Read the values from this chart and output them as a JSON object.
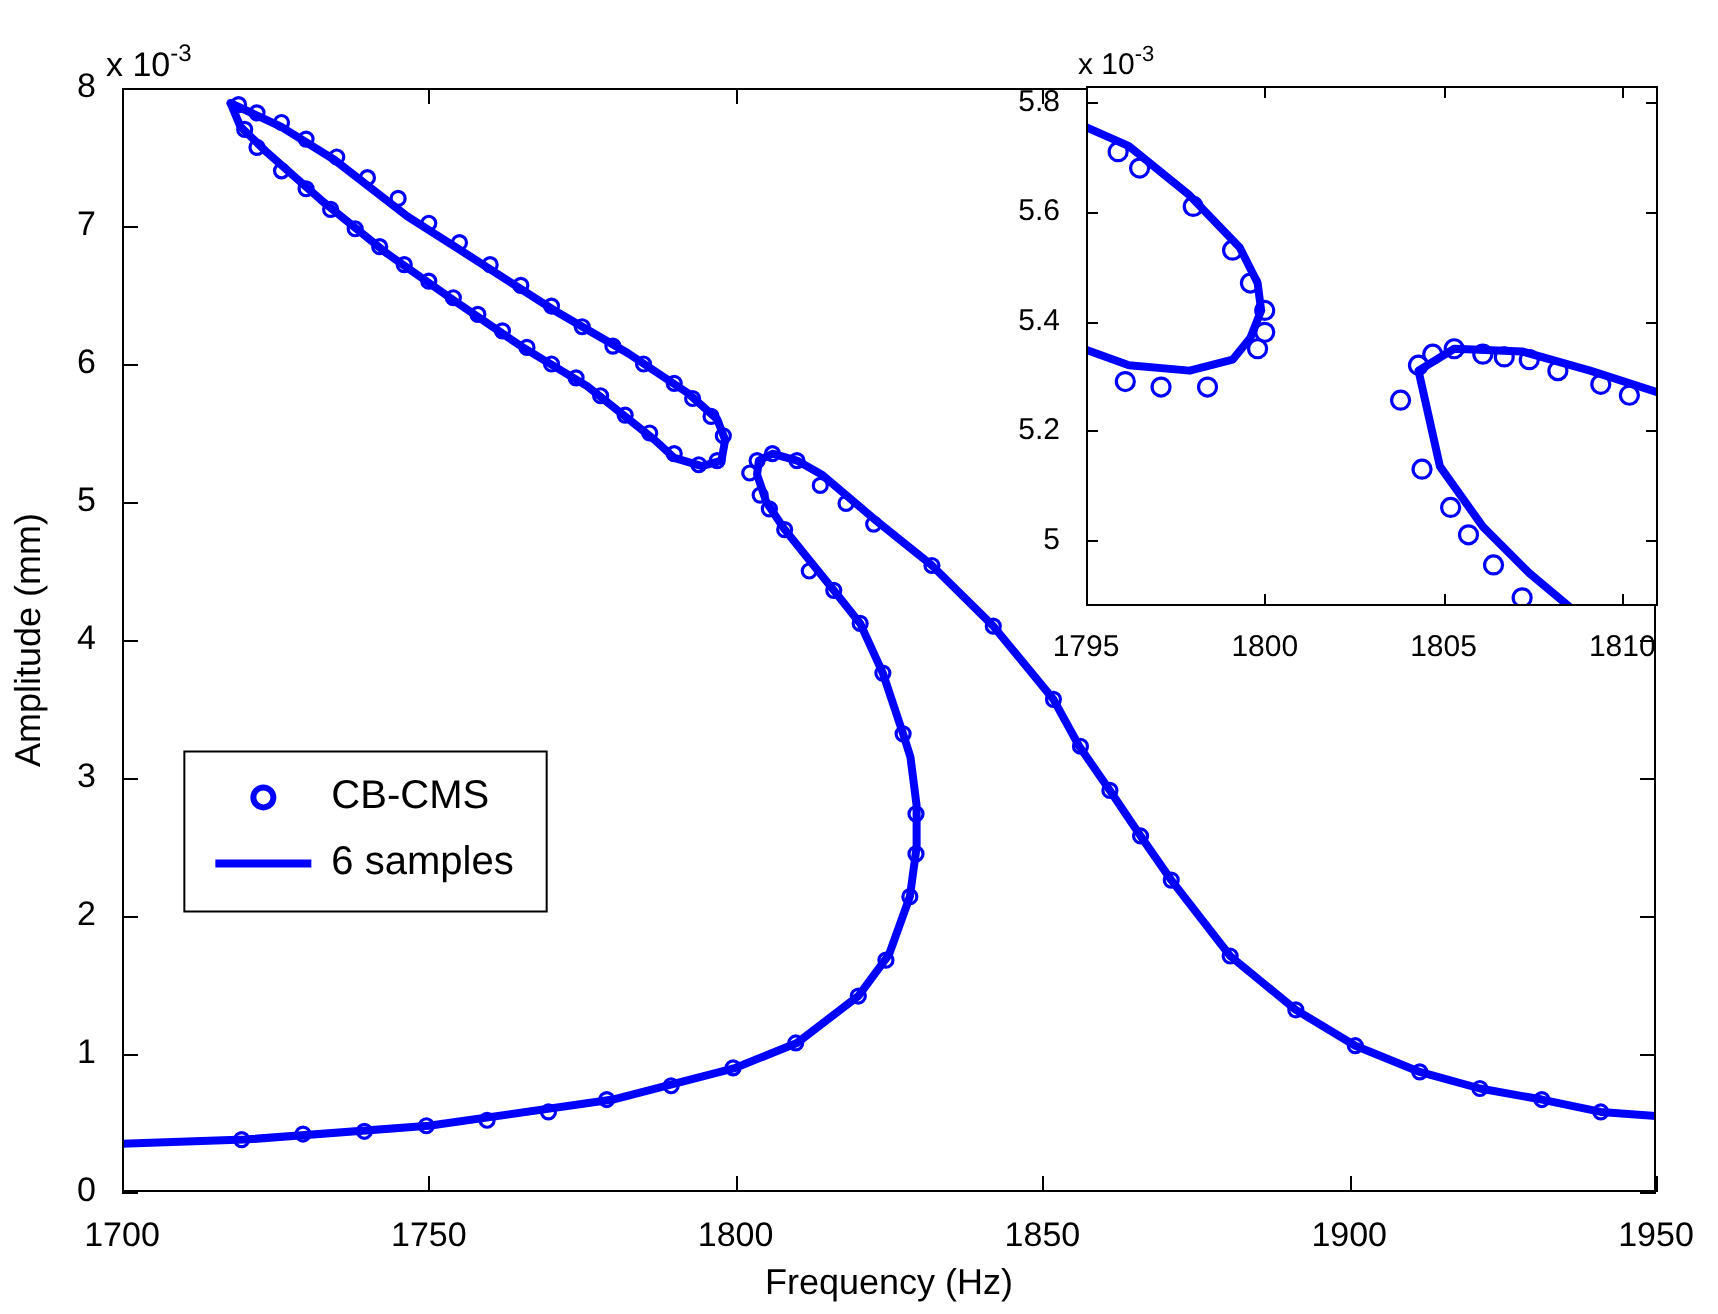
{
  "chart_data": [
    {
      "type": "scatter",
      "xlabel": "Frequency (Hz)",
      "ylabel": "Amplitude (mm)",
      "annotations": [
        "x 10$^{-3}$"
      ],
      "xlim": [
        1700,
        1950
      ],
      "xticks": [
        1700,
        1750,
        1800,
        1850,
        1900,
        1950
      ],
      "ylim": [
        0,
        8
      ],
      "yticks": [
        0,
        1,
        2,
        3,
        4,
        5,
        6,
        7,
        8
      ],
      "grid": false,
      "legend": "left",
      "series": [
        {
          "name": "CB-CMS",
          "type": "scatter",
          "marker": "circle",
          "color": "#0000ff",
          "x": [
            1719.5,
            1729.5,
            1739.5,
            1749.6,
            1759.5,
            1769.5,
            1779,
            1789.5,
            1799.6,
            1809.8,
            1820,
            1824.5,
            1828.4,
            1829.4,
            1829.4,
            1827.3,
            1824,
            1820.3,
            1816,
            1812,
            1808,
            1805.5,
            1804,
            1802.3,
            1803.5,
            1806,
            1810,
            1813.8,
            1818,
            1822.5,
            1832,
            1842,
            1851.8,
            1856.2,
            1861,
            1866,
            1871,
            1880.6,
            1891.3,
            1901,
            1911.5,
            1921.3,
            1931.4,
            1941,
            1719,
            1722,
            1726,
            1730,
            1735,
            1740,
            1745,
            1750,
            1755,
            1760,
            1765,
            1770,
            1775,
            1780,
            1785,
            1790,
            1793,
            1796,
            1798,
            1797,
            1794,
            1790,
            1786,
            1782,
            1778,
            1774,
            1770,
            1766,
            1762,
            1758,
            1754,
            1750,
            1746,
            1742,
            1738,
            1734,
            1730,
            1726,
            1722,
            1720
          ],
          "values": [
            0.38,
            0.42,
            0.44,
            0.48,
            0.52,
            0.58,
            0.67,
            0.77,
            0.9,
            1.08,
            1.42,
            1.68,
            2.14,
            2.45,
            2.74,
            3.32,
            3.76,
            4.12,
            4.36,
            4.5,
            4.8,
            4.95,
            5.05,
            5.21,
            5.3,
            5.35,
            5.3,
            5.12,
            4.99,
            4.84,
            4.54,
            4.1,
            3.57,
            3.23,
            2.91,
            2.58,
            2.26,
            1.71,
            1.32,
            1.06,
            0.87,
            0.75,
            0.67,
            0.58,
            7.88,
            7.82,
            7.75,
            7.63,
            7.5,
            7.35,
            7.2,
            7.02,
            6.88,
            6.72,
            6.57,
            6.42,
            6.27,
            6.13,
            6,
            5.86,
            5.75,
            5.62,
            5.48,
            5.3,
            5.27,
            5.35,
            5.5,
            5.63,
            5.77,
            5.9,
            6,
            6.12,
            6.24,
            6.36,
            6.48,
            6.6,
            6.72,
            6.85,
            6.98,
            7.12,
            7.27,
            7.4,
            7.57,
            7.7
          ]
        },
        {
          "name": "6 samples",
          "type": "line",
          "marker": "none",
          "color": "#0000ff",
          "x": [
            1700,
            1720,
            1750,
            1780,
            1800,
            1810,
            1820,
            1825,
            1828.4,
            1829.5,
            1829.5,
            1828.5,
            1827.3,
            1824,
            1820.3,
            1816,
            1812,
            1808,
            1805,
            1803.5,
            1803.8,
            1806,
            1810,
            1814,
            1818,
            1822.5,
            1832,
            1842,
            1851.8,
            1856,
            1861,
            1866,
            1871,
            1880.6,
            1891.3,
            1901,
            1911.5,
            1921.3,
            1931.4,
            1941,
            1950
          ],
          "values": [
            0.35,
            0.38,
            0.48,
            0.67,
            0.9,
            1.08,
            1.42,
            1.72,
            2.14,
            2.5,
            2.8,
            3.15,
            3.32,
            3.76,
            4.12,
            4.36,
            4.58,
            4.8,
            5,
            5.2,
            5.3,
            5.35,
            5.3,
            5.2,
            5.05,
            4.88,
            4.54,
            4.1,
            3.57,
            3.23,
            2.91,
            2.58,
            2.26,
            1.71,
            1.32,
            1.06,
            0.87,
            0.75,
            0.67,
            0.58,
            0.55
          ]
        },
        {
          "type": "line",
          "marker": "none",
          "color": "#0000ff",
          "x": [
            1717.7,
            1725.9,
            1734.6,
            1746.5,
            1758.5,
            1770.4,
            1782.4,
            1792.2,
            1797,
            1798.3
          ],
          "values": [
            7.89,
            7.72,
            7.48,
            7.07,
            6.73,
            6.39,
            6.08,
            5.79,
            5.6,
            5.45
          ]
        },
        {
          "type": "line",
          "marker": "none",
          "color": "#0000ff",
          "x": [
            1717.7,
            1719.3,
            1723.7,
            1732.4,
            1743.2,
            1754.1,
            1765,
            1775.8,
            1786.8,
            1790,
            1794.5,
            1797.7,
            1798.3
          ],
          "values": [
            7.89,
            7.72,
            7.53,
            7.19,
            6.8,
            6.46,
            6.13,
            5.84,
            5.45,
            5.32,
            5.26,
            5.3,
            5.45
          ]
        }
      ]
    },
    {
      "type": "scatter",
      "annotations": [
        "x 10$^{-3}$"
      ],
      "xlim": [
        1795,
        1811
      ],
      "xticks": [
        1795,
        1800,
        1805,
        1810
      ],
      "ylim": [
        4.88,
        5.83
      ],
      "yticks": [
        5,
        5.2,
        5.4,
        5.6,
        5.8
      ],
      "grid": false,
      "series": [
        {
          "type": "scatter",
          "marker": "circle",
          "color": "#0000ff",
          "x": [
            1795.9,
            1796.5,
            1798,
            1799.1,
            1799.6,
            1800,
            1800,
            1799.8,
            1798.4,
            1797.1,
            1796.1,
            1803.8,
            1804.3,
            1804.7,
            1805.3,
            1806.1,
            1806.7,
            1807.4,
            1808.2,
            1809.4,
            1810.2,
            1804.4,
            1805.2,
            1805.7,
            1806.4,
            1807.2
          ],
          "values": [
            5.71,
            5.68,
            5.61,
            5.53,
            5.47,
            5.42,
            5.38,
            5.35,
            5.28,
            5.28,
            5.29,
            5.256,
            5.32,
            5.34,
            5.35,
            5.34,
            5.335,
            5.33,
            5.31,
            5.285,
            5.265,
            5.13,
            5.06,
            5.01,
            4.955,
            4.895
          ]
        },
        {
          "type": "line",
          "marker": "none",
          "color": "#0000ff",
          "x": [
            1795,
            1796.2,
            1797.9,
            1799.3,
            1799.8,
            1799.9,
            1799.6,
            1799.1,
            1797.9,
            1796.2,
            1795
          ],
          "values": [
            5.755,
            5.72,
            5.63,
            5.535,
            5.47,
            5.42,
            5.37,
            5.33,
            5.31,
            5.32,
            5.348
          ]
        },
        {
          "type": "line",
          "marker": "none",
          "color": "#0000ff",
          "x": [
            1808.5,
            1807.4,
            1806.1,
            1804.9,
            1804.3,
            1805.3,
            1807.2,
            1809.1,
            1811
          ],
          "values": [
            4.88,
            4.94,
            5.025,
            5.135,
            5.31,
            5.35,
            5.345,
            5.31,
            5.27
          ]
        }
      ]
    }
  ]
}
